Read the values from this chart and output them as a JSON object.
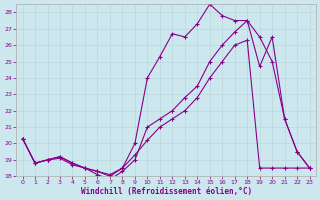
{
  "bg_color": "#cce8ee",
  "line_color": "#880088",
  "grid_color": "#b8d8dc",
  "xmin": 0,
  "xmax": 23,
  "ymin": 18,
  "ymax": 28.5,
  "xticks": [
    0,
    1,
    2,
    3,
    4,
    5,
    6,
    7,
    8,
    9,
    10,
    11,
    12,
    13,
    14,
    15,
    16,
    17,
    18,
    19,
    20,
    21,
    22,
    23
  ],
  "yticks": [
    18,
    19,
    20,
    21,
    22,
    23,
    24,
    25,
    26,
    27,
    28
  ],
  "xlabel": "Windchill (Refroidissement éolien,°C)",
  "line1_x": [
    0,
    1,
    2,
    3,
    4,
    5,
    6,
    7,
    8,
    9,
    10,
    11,
    12,
    13,
    14,
    15,
    16,
    17,
    18,
    19,
    20,
    21,
    22,
    23
  ],
  "line1_y": [
    20.3,
    18.8,
    19.0,
    19.2,
    18.8,
    18.5,
    18.1,
    17.8,
    18.3,
    19.0,
    21.0,
    21.5,
    22.0,
    22.8,
    23.5,
    25.0,
    26.0,
    26.8,
    27.5,
    24.7,
    26.5,
    21.5,
    19.5,
    18.5
  ],
  "line2_x": [
    0,
    1,
    2,
    3,
    4,
    5,
    6,
    7,
    8,
    9,
    10,
    11,
    12,
    13,
    14,
    15,
    16,
    17,
    18,
    19,
    20,
    21,
    22,
    23
  ],
  "line2_y": [
    20.3,
    18.8,
    19.0,
    19.2,
    18.8,
    18.5,
    18.3,
    18.0,
    18.5,
    20.0,
    24.0,
    25.3,
    26.7,
    26.5,
    27.3,
    28.5,
    27.8,
    27.5,
    27.5,
    26.5,
    25.0,
    21.5,
    19.5,
    18.5
  ],
  "line3_x": [
    0,
    1,
    2,
    3,
    4,
    5,
    6,
    7,
    8,
    9,
    10,
    11,
    12,
    13,
    14,
    15,
    16,
    17,
    18,
    19,
    20,
    21,
    22,
    23
  ],
  "line3_y": [
    20.3,
    18.8,
    19.0,
    19.1,
    18.7,
    18.5,
    18.3,
    18.1,
    18.5,
    19.3,
    20.2,
    21.0,
    21.5,
    22.0,
    22.8,
    24.0,
    25.0,
    26.0,
    26.3,
    18.5,
    18.5,
    18.5,
    18.5,
    18.5
  ]
}
